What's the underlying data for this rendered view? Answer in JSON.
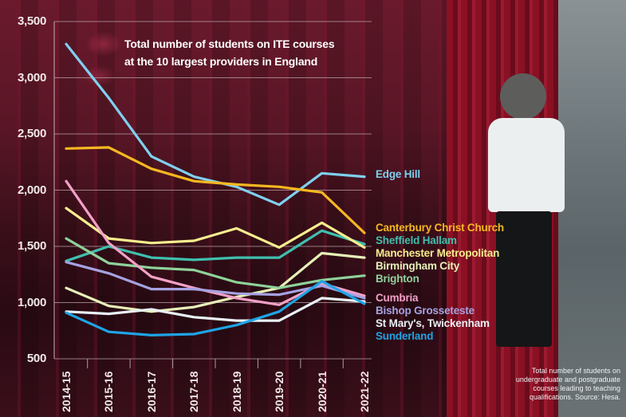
{
  "chart_data": {
    "type": "line",
    "title": "Total number of students on ITE courses at the 10 largest providers in England",
    "title_lines": [
      "Total number of students on ITE courses",
      "at the 10 largest providers in England"
    ],
    "xlabel": "",
    "ylabel": "",
    "ylim": [
      500,
      3500
    ],
    "yticks": [
      "3,500",
      "3,000",
      "2,500",
      "2,000",
      "1,500",
      "1,000",
      "500"
    ],
    "ytick_values": [
      3500,
      3000,
      2500,
      2000,
      1500,
      1000,
      500
    ],
    "grid": true,
    "legend_position": "right (direct labels at line ends)",
    "categories": [
      "2014-15",
      "2015-16",
      "2016-17",
      "2017-18",
      "2018-19",
      "2019-20",
      "2020-21",
      "2021-22"
    ],
    "series": [
      {
        "name": "Edge Hill",
        "color": "#7fd0ef",
        "values": [
          3300,
          2820,
          2300,
          2120,
          2030,
          1870,
          2150,
          2120
        ]
      },
      {
        "name": "Canterbury Christ Church",
        "color": "#f5b820",
        "values": [
          2370,
          2380,
          2190,
          2080,
          2050,
          2030,
          1980,
          1620
        ]
      },
      {
        "name": "Sheffield Hallam",
        "color": "#3fbfae",
        "values": [
          1370,
          1500,
          1400,
          1380,
          1400,
          1400,
          1640,
          1520
        ]
      },
      {
        "name": "Manchester Metropolitan",
        "color": "#f7ee8e",
        "values": [
          1840,
          1570,
          1530,
          1550,
          1660,
          1490,
          1710,
          1490
        ]
      },
      {
        "name": "Birmingham City",
        "color": "#e6f0b8",
        "values": [
          1130,
          970,
          920,
          960,
          1050,
          1130,
          1440,
          1400
        ]
      },
      {
        "name": "Brighton",
        "color": "#8fd29a",
        "values": [
          1570,
          1350,
          1310,
          1290,
          1180,
          1130,
          1200,
          1240
        ]
      },
      {
        "name": "Cumbria",
        "color": "#f2a0c8",
        "values": [
          2080,
          1530,
          1230,
          1130,
          1040,
          980,
          1170,
          1060
        ]
      },
      {
        "name": "Bishop Grosseteste",
        "color": "#a6a2e2",
        "values": [
          1360,
          1260,
          1120,
          1120,
          1080,
          1070,
          1150,
          1040
        ]
      },
      {
        "name": "St Mary's, Twickenham",
        "color": "#e8f0f6",
        "values": [
          920,
          900,
          940,
          870,
          840,
          840,
          1040,
          1010
        ]
      },
      {
        "name": "Sunderland",
        "color": "#1ea4e6",
        "values": [
          910,
          740,
          710,
          720,
          800,
          920,
          1190,
          990
        ]
      }
    ],
    "annotation": "Total number of students on undergraduate and postgraduate courses leading to teaching qualifications. Source: Hesa."
  },
  "source_note": [
    "Total number of students on",
    "undergraduate and postgraduate",
    "courses leading to teaching",
    "qualifications. Source: Hesa."
  ],
  "colors": {
    "background": "#2a0d14",
    "gridline": "#b09aa0",
    "tick_text": "#f2e9ea",
    "title_text": "#ffffff"
  }
}
